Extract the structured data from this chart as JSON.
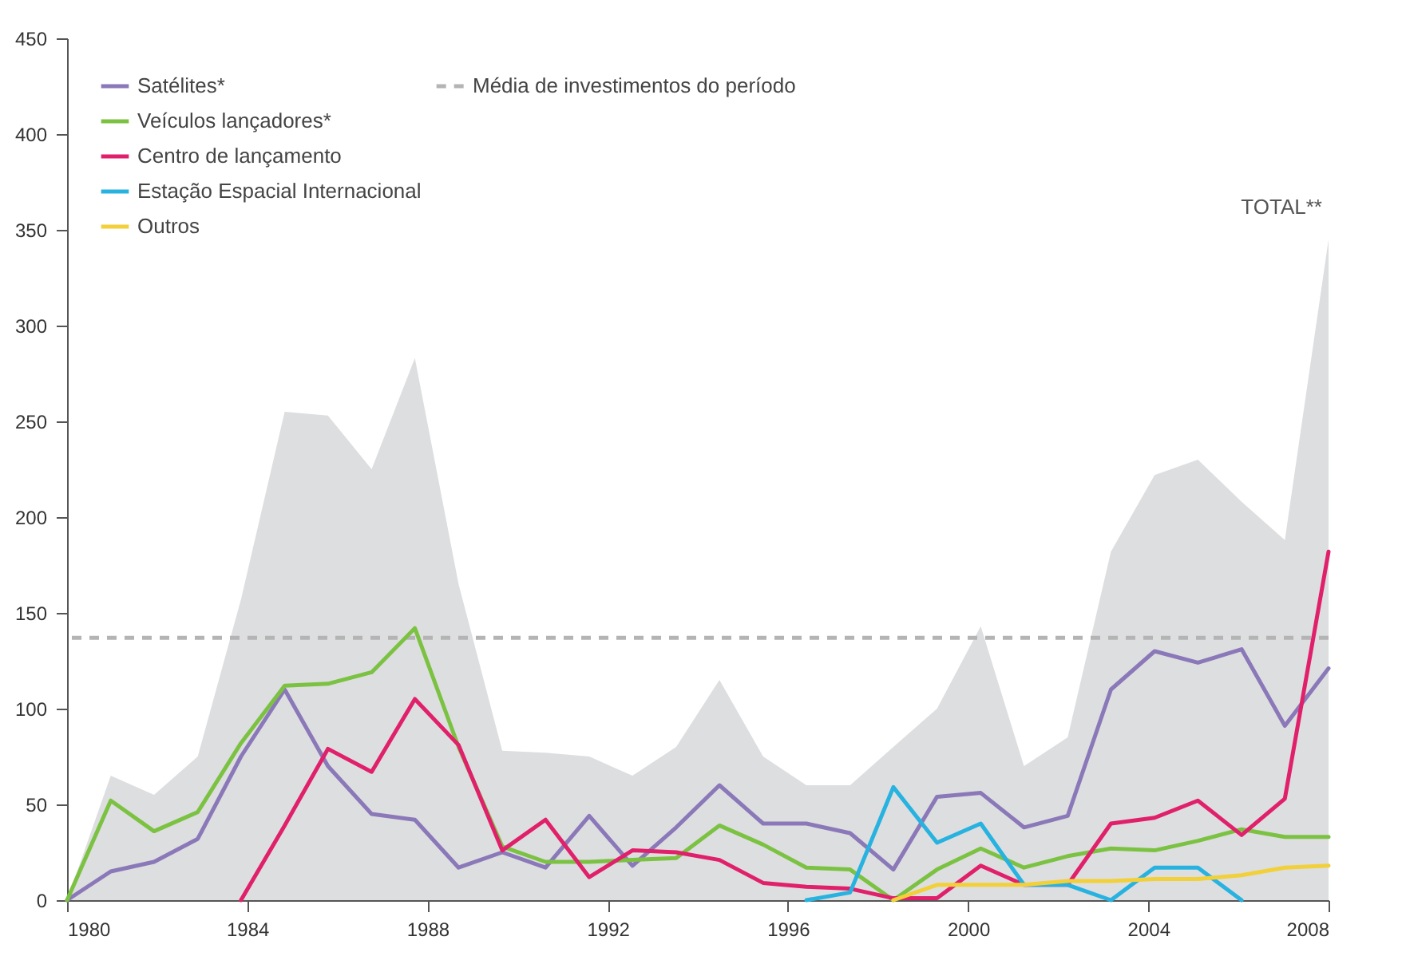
{
  "chart_data": {
    "type": "line",
    "x": [
      1980,
      1980.97,
      1981.93,
      1982.9,
      1983.86,
      1984.83,
      1985.79,
      1986.76,
      1987.72,
      1988.69,
      1989.66,
      1990.62,
      1991.59,
      1992.55,
      1993.52,
      1994.48,
      1995.45,
      1996.41,
      1997.38,
      1998.34,
      1999.31,
      2000.28,
      2001.24,
      2002.21,
      2003.17,
      2004.14,
      2005.1,
      2006.07,
      2007.03,
      2008
    ],
    "series": [
      {
        "type": "area",
        "color": "#dddee0",
        "values": [
          0,
          65,
          55,
          75,
          157,
          255,
          253,
          225,
          283,
          165,
          78,
          77,
          75,
          65,
          80,
          115,
          75,
          60,
          60,
          80,
          100,
          143,
          70,
          85,
          182,
          222,
          230,
          208,
          188,
          345
        ]
      },
      {
        "name": "Satélites*",
        "color": "#8a78b8",
        "values": [
          0,
          15,
          20,
          32,
          75,
          110,
          70,
          45,
          42,
          17,
          25,
          17,
          44,
          18,
          38,
          60,
          40,
          40,
          35,
          16,
          54,
          56,
          38,
          44,
          110,
          130,
          124,
          131,
          91,
          121
        ]
      },
      {
        "name": "Veículos lançadores*",
        "color": "#7cc242",
        "values": [
          0,
          52,
          36,
          46,
          82,
          112,
          113,
          119,
          142,
          80,
          28,
          20,
          20,
          21,
          22,
          39,
          29,
          17,
          16,
          0,
          16,
          27,
          17,
          23,
          27,
          26,
          31,
          37,
          33,
          33
        ]
      },
      {
        "name": "Centro de lançamento",
        "color": "#e0206a",
        "values": [
          null,
          null,
          null,
          null,
          0,
          39,
          79,
          67,
          105,
          81,
          26,
          42,
          12,
          26,
          25,
          21,
          9,
          7,
          6,
          1,
          1,
          18,
          8,
          8,
          40,
          43,
          52,
          34,
          53,
          182
        ]
      },
      {
        "name": "Estação Espacial Internacional",
        "color": "#27b2e0",
        "values": [
          null,
          null,
          null,
          null,
          null,
          null,
          null,
          null,
          null,
          null,
          null,
          null,
          null,
          null,
          null,
          null,
          null,
          0,
          4,
          59,
          30,
          40,
          8,
          8,
          0,
          17,
          17,
          0,
          null,
          null
        ]
      },
      {
        "name": "Outros",
        "color": "#f2d03a",
        "values": [
          null,
          null,
          null,
          null,
          null,
          null,
          null,
          null,
          null,
          null,
          null,
          null,
          null,
          null,
          null,
          null,
          null,
          null,
          null,
          0,
          8,
          8,
          8,
          10,
          10,
          11,
          11,
          13,
          17,
          18
        ]
      }
    ],
    "ref_lines": [
      {
        "axis": "y",
        "value": 137,
        "label": "Média de investimentos do período",
        "color": "#b4b4b4",
        "line_style": "dashed"
      }
    ],
    "annotations": [
      {
        "text": "TOTAL**",
        "x": 2008,
        "y": 345
      }
    ],
    "xlim": [
      1980,
      2008
    ],
    "xticks": [
      1980,
      1984,
      1988,
      1992,
      1996,
      2000,
      2004,
      2008
    ],
    "ylim": [
      0,
      450
    ],
    "yticks": [
      0,
      50,
      100,
      150,
      200,
      250,
      300,
      350,
      400,
      450
    ],
    "grid": false,
    "legend": "top left"
  }
}
